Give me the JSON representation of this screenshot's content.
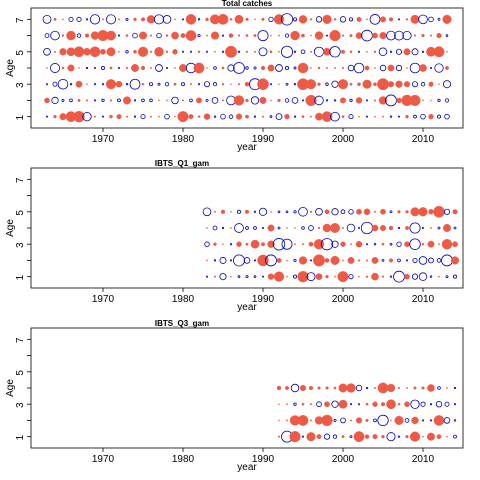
{
  "colors": {
    "positive": "#ee5a45",
    "negative": "#0000cc"
  },
  "chart_data": [
    {
      "type": "scatter",
      "subtype": "bubble-residuals",
      "title": "Total catches",
      "xlabel": "year",
      "ylabel": "Age",
      "xlim": [
        1961,
        2015
      ],
      "ylim": [
        0.3,
        7.7
      ],
      "xticks": [
        1970,
        1980,
        1990,
        2000,
        2010
      ],
      "yticks": [
        1,
        3,
        5,
        7
      ],
      "ages": [
        1,
        2,
        3,
        4,
        5,
        6,
        7
      ],
      "years": [
        1963,
        2013
      ]
    },
    {
      "type": "scatter",
      "subtype": "bubble-residuals",
      "title": "IBTS_Q1_gam",
      "xlabel": "year",
      "ylabel": "Age",
      "xlim": [
        1961,
        2015
      ],
      "ylim": [
        0.3,
        7.7
      ],
      "xticks": [
        1970,
        1980,
        1990,
        2000,
        2010
      ],
      "yticks": [
        1,
        3,
        5,
        7
      ],
      "ages": [
        1,
        2,
        3,
        4,
        5
      ],
      "years": [
        1983,
        2014
      ]
    },
    {
      "type": "scatter",
      "subtype": "bubble-residuals",
      "title": "IBTS_Q3_gam",
      "xlabel": "year",
      "ylabel": "Age",
      "xlim": [
        1961,
        2015
      ],
      "ylim": [
        0.3,
        7.7
      ],
      "xticks": [
        1970,
        1980,
        1990,
        2000,
        2010
      ],
      "yticks": [
        1,
        3,
        5,
        7
      ],
      "ages": [
        1,
        2,
        3,
        4
      ],
      "years": [
        1992,
        2014
      ]
    }
  ]
}
